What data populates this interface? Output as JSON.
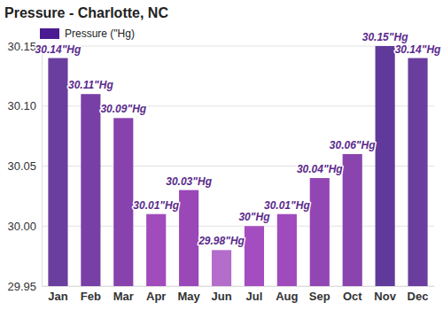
{
  "chart_data": {
    "type": "bar",
    "title": "Pressure - Charlotte, NC",
    "categories": [
      "Jan",
      "Feb",
      "Mar",
      "Apr",
      "May",
      "Jun",
      "Jul",
      "Aug",
      "Sep",
      "Oct",
      "Nov",
      "Dec"
    ],
    "series": [
      {
        "name": "Pressure (\"Hg)",
        "color": "#4b1c91",
        "values": [
          30.14,
          30.11,
          30.09,
          30.01,
          30.03,
          29.98,
          30,
          30.01,
          30.04,
          30.06,
          30.15,
          30.14
        ],
        "value_labels": [
          "30.14\"Hg",
          "30.11\"Hg",
          "30.09\"Hg",
          "30.01\"Hg",
          "30.03\"Hg",
          "29.98\"Hg",
          "30\"Hg",
          "30.01\"Hg",
          "30.04\"Hg",
          "30.06\"Hg",
          "30.15\"Hg",
          "30.14\"Hg"
        ],
        "colors": [
          "#6a3e9e",
          "#7840a6",
          "#8742ad",
          "#a24bbd",
          "#9a47b8",
          "#b46dcb",
          "#a44dc0",
          "#a04bbd",
          "#9246b3",
          "#8a44ae",
          "#5f3a9b",
          "#6a3e9e"
        ]
      }
    ],
    "ylim": [
      29.95,
      30.15
    ],
    "yticks": [
      29.95,
      {
        "value": 30,
        "label": "30.00"
      },
      30.05,
      {
        "value": 30.1,
        "label": "30.10"
      },
      30.15
    ],
    "grid": true,
    "legend": "top-left",
    "data_labels": true
  }
}
